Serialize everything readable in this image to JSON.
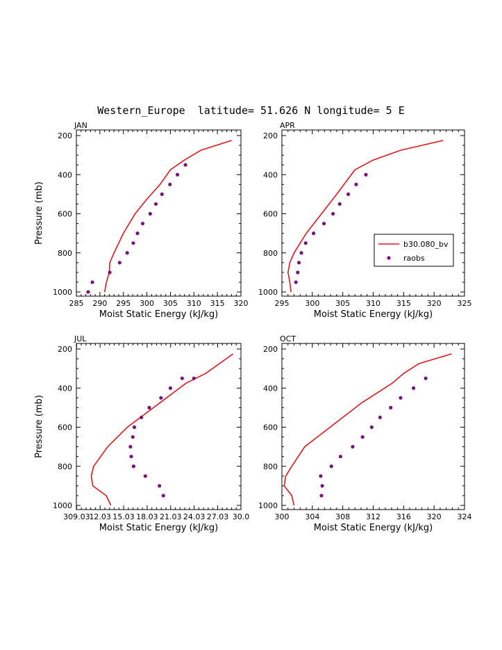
{
  "page": {
    "title": "Western_Europe  latitude= 51.626 N longitude= 5 E"
  },
  "colors": {
    "model_line": "#e8141c",
    "raobs_dots": "#7b127b",
    "axes": "#000000"
  },
  "legend": {
    "panel_index": 1,
    "entries": [
      {
        "label": "b30.080_bv",
        "symbol": "line",
        "color": "#e8141c"
      },
      {
        "label": "raobs",
        "symbol": "dot",
        "color": "#7b127b"
      }
    ]
  },
  "chart_data": [
    {
      "type": "line",
      "panel": "JAN",
      "xlabel": "Moist Static Energy (kJ/kg)",
      "ylabel": "Pressure (mb)",
      "xlim": [
        285,
        320
      ],
      "ylim": [
        1000,
        200
      ],
      "xticks": [
        285,
        290,
        295,
        300,
        305,
        310,
        315,
        320
      ],
      "xtick_labels": [
        "285",
        "290",
        "295",
        "300",
        "305",
        "310",
        "315",
        "320"
      ],
      "yticks": [
        200,
        400,
        600,
        800,
        1000
      ],
      "ytick_labels": [
        "200",
        "400",
        "600",
        "800",
        "1000"
      ],
      "series": [
        {
          "name": "b30.080_bv",
          "kind": "line",
          "x": [
            291.0,
            291.4,
            292.0,
            292.1,
            293.0,
            295.0,
            297.5,
            300.0,
            302.8,
            305.0,
            308.0,
            311.5,
            318.0
          ],
          "y": [
            1000,
            950,
            900,
            850,
            800,
            700,
            600,
            525,
            450,
            375,
            325,
            275,
            225
          ]
        },
        {
          "name": "raobs",
          "kind": "scatter",
          "x": [
            287.5,
            288.4,
            292.1,
            294.2,
            295.8,
            297.1,
            298.0,
            299.1,
            300.7,
            301.9,
            303.2,
            304.9,
            306.5,
            308.2
          ],
          "y": [
            1000,
            950,
            900,
            850,
            800,
            750,
            700,
            650,
            600,
            550,
            500,
            450,
            400,
            350
          ]
        }
      ]
    },
    {
      "type": "line",
      "panel": "APR",
      "xlabel": "Moist Static Energy (kJ/kg)",
      "ylabel": "",
      "xlim": [
        295,
        325
      ],
      "ylim": [
        1000,
        200
      ],
      "xticks": [
        295,
        300,
        305,
        310,
        315,
        320,
        325
      ],
      "xtick_labels": [
        "295",
        "300",
        "305",
        "310",
        "315",
        "320",
        "325"
      ],
      "yticks": [
        200,
        400,
        600,
        800,
        1000
      ],
      "ytick_labels": [
        "200",
        "400",
        "600",
        "800",
        "1000"
      ],
      "series": [
        {
          "name": "b30.080_bv",
          "kind": "line",
          "x": [
            296.5,
            296.3,
            296.0,
            296.3,
            297.0,
            299.0,
            301.5,
            304.0,
            307.0,
            310.0,
            314.5,
            321.5
          ],
          "y": [
            1000,
            950,
            900,
            850,
            800,
            700,
            600,
            500,
            375,
            325,
            275,
            225
          ]
        },
        {
          "name": "raobs",
          "kind": "scatter",
          "x": [
            297.3,
            297.6,
            297.8,
            298.2,
            298.9,
            300.2,
            301.9,
            303.4,
            304.5,
            305.9,
            307.2,
            308.8
          ],
          "y": [
            950,
            900,
            850,
            800,
            750,
            700,
            650,
            600,
            550,
            500,
            450,
            400
          ]
        }
      ]
    },
    {
      "type": "line",
      "panel": "JUL",
      "xlabel": "Moist Static Energy (kJ/kg)",
      "ylabel": "Pressure (mb)",
      "xlim": [
        309.0,
        330.0
      ],
      "ylim": [
        1000,
        200
      ],
      "xticks": [
        309.03,
        312.03,
        315.03,
        318.03,
        321.03,
        324.03,
        327.03,
        330.0
      ],
      "xtick_labels": [
        "309.03",
        "12.03",
        "15.03",
        "18.03",
        "21.03",
        "24.03",
        "27.03",
        "30.0"
      ],
      "yticks": [
        200,
        400,
        600,
        800,
        1000
      ],
      "ytick_labels": [
        "200",
        "400",
        "600",
        "800",
        "1000"
      ],
      "series": [
        {
          "name": "b30.080_bv",
          "kind": "line",
          "x": [
            313.4,
            312.8,
            311.1,
            310.9,
            311.2,
            313.0,
            315.5,
            318.0,
            320.5,
            323.0,
            325.5,
            329.0
          ],
          "y": [
            1000,
            950,
            900,
            850,
            800,
            700,
            600,
            525,
            450,
            375,
            325,
            225
          ]
        },
        {
          "name": "raobs",
          "kind": "scatter",
          "x": [
            320.1,
            319.6,
            317.8,
            316.3,
            316.0,
            315.9,
            316.2,
            316.4,
            317.3,
            318.3,
            319.8,
            321.0,
            322.5,
            324.0
          ],
          "y": [
            950,
            900,
            850,
            800,
            750,
            700,
            650,
            600,
            550,
            500,
            450,
            400,
            350,
            350
          ]
        }
      ]
    },
    {
      "type": "line",
      "panel": "OCT",
      "xlabel": "Moist Static Energy (kJ/kg)",
      "ylabel": "",
      "xlim": [
        300,
        324
      ],
      "ylim": [
        1000,
        200
      ],
      "xticks": [
        300,
        304,
        308,
        312,
        316,
        320,
        324
      ],
      "xtick_labels": [
        "300",
        "304",
        "308",
        "312",
        "316",
        "320",
        "324"
      ],
      "yticks": [
        200,
        400,
        600,
        800,
        1000
      ],
      "ytick_labels": [
        "200",
        "400",
        "600",
        "800",
        "1000"
      ],
      "series": [
        {
          "name": "b30.080_bv",
          "kind": "line",
          "x": [
            301.6,
            301.3,
            300.3,
            300.5,
            301.3,
            303.0,
            305.5,
            308.0,
            310.5,
            312.5,
            314.5,
            316.0,
            318.0,
            322.3
          ],
          "y": [
            1000,
            950,
            900,
            850,
            800,
            700,
            625,
            550,
            475,
            425,
            375,
            325,
            275,
            225
          ]
        },
        {
          "name": "raobs",
          "kind": "scatter",
          "x": [
            305.2,
            305.3,
            305.1,
            306.5,
            307.7,
            309.3,
            310.6,
            311.8,
            312.9,
            314.3,
            315.6,
            317.3,
            318.9
          ],
          "y": [
            950,
            900,
            850,
            800,
            750,
            700,
            650,
            600,
            550,
            500,
            450,
            400,
            350
          ]
        }
      ]
    }
  ]
}
